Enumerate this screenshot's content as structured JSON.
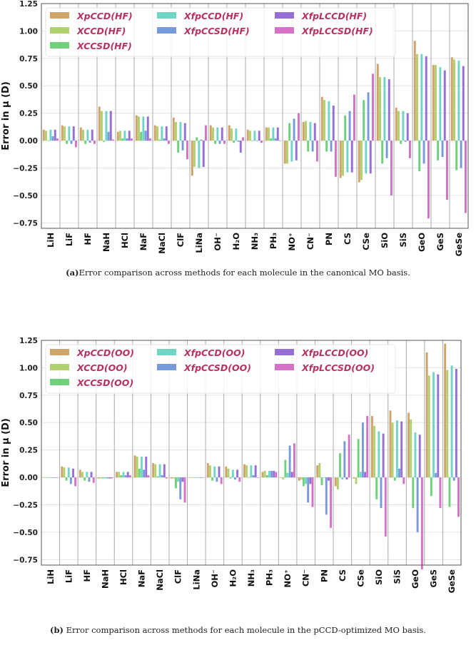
{
  "chart_data": [
    {
      "type": "bar",
      "id": "a",
      "ylabel": "Error in μ (D)",
      "ylim": [
        -0.8,
        1.25
      ],
      "yticks": [
        -0.75,
        -0.5,
        -0.25,
        0.0,
        0.25,
        0.5,
        0.75,
        1.0,
        1.25
      ],
      "ytick_labels": [
        "−0.75",
        "−0.50",
        "−0.25",
        "0.00",
        "0.25",
        "0.50",
        "0.75",
        "1.00",
        "1.25"
      ],
      "grid": true,
      "legend_position": "top-left",
      "categories": [
        "LiH",
        "LiF",
        "HF",
        "NaH",
        "HCl",
        "NaF",
        "NaCl",
        "ClF",
        "LiNa",
        "OH⁻",
        "H₂O",
        "NH₃",
        "PH₃",
        "NO⁺",
        "CN⁻",
        "PN",
        "CS",
        "CSe",
        "SiO",
        "SiS",
        "GeO",
        "GeS",
        "GeSe"
      ],
      "series": [
        {
          "name": "XpCCD(HF)",
          "color": "#c99a5a",
          "values": [
            0.1,
            0.14,
            0.12,
            0.31,
            0.08,
            0.23,
            0.14,
            0.21,
            -0.32,
            0.14,
            0.14,
            0.1,
            0.12,
            -0.21,
            0.17,
            0.4,
            -0.34,
            -0.38,
            0.7,
            0.3,
            0.91,
            0.69,
            0.76
          ]
        },
        {
          "name": "XCCD(HF)",
          "color": "#a9cc5e",
          "values": [
            0.09,
            0.13,
            0.1,
            0.27,
            0.09,
            0.22,
            0.13,
            0.17,
            -0.24,
            0.12,
            0.11,
            0.09,
            0.12,
            -0.21,
            0.18,
            0.37,
            -0.32,
            -0.36,
            0.58,
            0.27,
            0.79,
            0.69,
            0.74
          ]
        },
        {
          "name": "XCCSD(HF)",
          "color": "#5fcc6c",
          "values": [
            0.0,
            -0.03,
            -0.03,
            -0.01,
            0.02,
            0.08,
            0.01,
            -0.11,
            0.03,
            -0.03,
            -0.02,
            0.0,
            0.02,
            0.16,
            -0.1,
            -0.1,
            0.23,
            0.37,
            -0.21,
            -0.03,
            -0.28,
            -0.18,
            -0.27
          ]
        },
        {
          "name": "XfpCCD(HF)",
          "color": "#62d0c0",
          "values": [
            0.1,
            0.13,
            0.1,
            0.27,
            0.09,
            0.22,
            0.13,
            0.17,
            -0.25,
            0.12,
            0.11,
            0.09,
            0.12,
            -0.19,
            0.17,
            0.36,
            -0.29,
            -0.3,
            0.58,
            0.27,
            0.79,
            0.67,
            0.73
          ]
        },
        {
          "name": "XfpCCSD(HF)",
          "color": "#6a8fd6",
          "values": [
            0.04,
            -0.03,
            -0.02,
            0.08,
            0.02,
            0.09,
            0.02,
            -0.09,
            0.01,
            -0.03,
            -0.01,
            0.0,
            0.02,
            0.2,
            -0.1,
            -0.1,
            0.27,
            0.44,
            -0.16,
            -0.01,
            -0.21,
            -0.15,
            -0.25
          ]
        },
        {
          "name": "XfpLCCD(HF)",
          "color": "#8a5fd2",
          "values": [
            0.1,
            0.13,
            0.1,
            0.27,
            0.09,
            0.22,
            0.13,
            0.16,
            -0.24,
            0.12,
            -0.11,
            0.09,
            0.12,
            -0.18,
            0.16,
            0.32,
            -0.29,
            -0.3,
            0.56,
            0.25,
            0.77,
            0.64,
            0.68
          ]
        },
        {
          "name": "XfpLCCSD(HF)",
          "color": "#d262c2",
          "values": [
            0.02,
            -0.06,
            -0.03,
            0.01,
            0.02,
            0.02,
            -0.03,
            -0.17,
            0.14,
            -0.03,
            0.03,
            -0.02,
            0.0,
            0.25,
            -0.19,
            -0.33,
            0.42,
            0.61,
            -0.5,
            -0.16,
            -0.71,
            -0.54,
            -0.66
          ]
        }
      ],
      "caption_label": "(a)",
      "caption_text": "Error comparison across methods for each molecule in the canonical MO basis."
    },
    {
      "type": "bar",
      "id": "b",
      "ylabel": "Error in μ (D)",
      "ylim": [
        -0.8,
        1.25
      ],
      "yticks": [
        -0.75,
        -0.5,
        -0.25,
        0.0,
        0.25,
        0.5,
        0.75,
        1.0,
        1.25
      ],
      "ytick_labels": [
        "−0.75",
        "−0.50",
        "−0.25",
        "0.00",
        "0.25",
        "0.50",
        "0.75",
        "1.00",
        "1.25"
      ],
      "grid": true,
      "legend_position": "top-left",
      "categories": [
        "LiH",
        "LiF",
        "HF",
        "NaH",
        "HCl",
        "NaF",
        "NaCl",
        "ClF",
        "LiNa",
        "OH⁻",
        "H₂O",
        "NH₃",
        "PH₃",
        "NO⁺",
        "CN⁻",
        "PN",
        "CS",
        "CSe",
        "SiO",
        "SiS",
        "GeO",
        "GeS",
        "GeSe"
      ],
      "series": [
        {
          "name": "XpCCD(OO)",
          "color": "#c99a5a",
          "values": [
            0.0,
            0.1,
            0.07,
            -0.01,
            0.05,
            0.2,
            0.13,
            -0.01,
            0.0,
            0.13,
            0.1,
            0.12,
            0.05,
            0.0,
            -0.03,
            0.11,
            -0.08,
            -0.01,
            0.56,
            0.61,
            0.59,
            1.14,
            1.22
          ]
        },
        {
          "name": "XCCD(OO)",
          "color": "#a9cc5e",
          "values": [
            0.0,
            0.09,
            0.05,
            -0.01,
            0.05,
            0.19,
            0.12,
            -0.01,
            0.0,
            0.11,
            0.08,
            0.11,
            0.06,
            -0.02,
            -0.02,
            0.13,
            -0.11,
            -0.06,
            0.47,
            0.5,
            0.53,
            0.93,
            0.98
          ]
        },
        {
          "name": "XCCSD(OO)",
          "color": "#5fcc6c",
          "values": [
            0.0,
            -0.03,
            -0.03,
            -0.01,
            0.02,
            0.08,
            0.01,
            -0.1,
            0.0,
            -0.03,
            -0.01,
            0.0,
            0.02,
            0.16,
            -0.08,
            -0.07,
            0.22,
            0.35,
            -0.2,
            -0.03,
            -0.28,
            -0.17,
            -0.27
          ]
        },
        {
          "name": "XfpCCD(OO)",
          "color": "#62d0c0",
          "values": [
            0.0,
            0.09,
            0.05,
            -0.01,
            0.05,
            0.19,
            0.12,
            -0.04,
            0.0,
            0.1,
            0.07,
            0.11,
            0.06,
            0.04,
            -0.06,
            0.0,
            -0.02,
            0.05,
            0.42,
            0.52,
            0.41,
            0.96,
            1.02
          ]
        },
        {
          "name": "XfpCCSD(OO)",
          "color": "#6a8fd6",
          "values": [
            0.0,
            -0.06,
            -0.04,
            -0.01,
            0.02,
            0.07,
            0.02,
            -0.2,
            0.0,
            -0.04,
            -0.02,
            0.02,
            0.06,
            0.29,
            -0.23,
            -0.34,
            0.33,
            0.5,
            -0.28,
            0.08,
            -0.5,
            0.04,
            -0.03
          ]
        },
        {
          "name": "XfpLCCD(OO)",
          "color": "#8a5fd2",
          "values": [
            0.0,
            0.08,
            0.05,
            -0.01,
            0.05,
            0.19,
            0.12,
            -0.04,
            0.0,
            0.1,
            0.07,
            0.11,
            0.06,
            0.05,
            -0.06,
            -0.03,
            -0.02,
            0.05,
            0.4,
            0.51,
            0.39,
            0.94,
            0.99
          ]
        },
        {
          "name": "XfpLCCSD(OO)",
          "color": "#d262c2",
          "values": [
            0.0,
            -0.08,
            -0.05,
            -0.01,
            0.02,
            0.02,
            -0.01,
            -0.23,
            0.0,
            -0.06,
            -0.04,
            0.0,
            0.05,
            0.31,
            -0.27,
            -0.46,
            0.39,
            0.56,
            -0.54,
            -0.06,
            -0.84,
            -0.28,
            -0.36
          ]
        }
      ],
      "caption_label": "(b)",
      "caption_text": " Error comparison across methods for each molecule in the pCCD-optimized MO basis."
    }
  ]
}
